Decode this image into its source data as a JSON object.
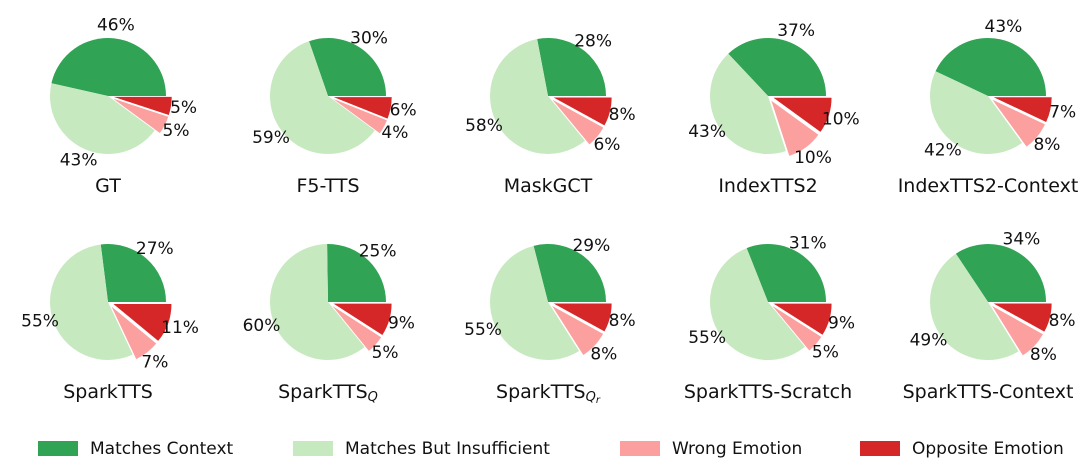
{
  "legend": {
    "labels": [
      "Matches Context",
      "Matches But Insufficient",
      "Wrong Emotion",
      "Opposite Emotion"
    ],
    "colors": [
      "#31a354",
      "#c7e9c0",
      "#fc9f9f",
      "#d62728"
    ],
    "exploded": [
      false,
      false,
      true,
      true
    ]
  },
  "chart_data": [
    {
      "type": "pie",
      "title": "GT",
      "values": [
        46,
        43,
        5,
        5
      ],
      "value_labels": [
        "46%",
        "43%",
        "5%",
        "5%"
      ]
    },
    {
      "type": "pie",
      "title": "F5-TTS",
      "values": [
        30,
        59,
        4,
        6
      ],
      "value_labels": [
        "30%",
        "59%",
        "4%",
        "6%"
      ]
    },
    {
      "type": "pie",
      "title": "MaskGCT",
      "values": [
        28,
        58,
        6,
        8
      ],
      "value_labels": [
        "28%",
        "58%",
        "6%",
        "8%"
      ]
    },
    {
      "type": "pie",
      "title": "IndexTTS2",
      "values": [
        37,
        43,
        10,
        10
      ],
      "value_labels": [
        "37%",
        "43%",
        "10%",
        "10%"
      ]
    },
    {
      "type": "pie",
      "title": "IndexTTS2-Context",
      "values": [
        43,
        42,
        8,
        7
      ],
      "value_labels": [
        "43%",
        "42%",
        "8%",
        "7%"
      ]
    },
    {
      "type": "pie",
      "title": "SparkTTS",
      "values": [
        27,
        55,
        7,
        11
      ],
      "value_labels": [
        "27%",
        "55%",
        "7%",
        "11%"
      ]
    },
    {
      "type": "pie",
      "title": "SparkTTS",
      "title_sub": "Q",
      "values": [
        25,
        60,
        5,
        9
      ],
      "value_labels": [
        "25%",
        "60%",
        "5%",
        "9%"
      ]
    },
    {
      "type": "pie",
      "title": "SparkTTS",
      "title_sub": "Q",
      "title_subsub": "r",
      "values": [
        29,
        55,
        8,
        8
      ],
      "value_labels": [
        "29%",
        "55%",
        "8%",
        "8%"
      ]
    },
    {
      "type": "pie",
      "title": "SparkTTS-Scratch",
      "values": [
        31,
        55,
        5,
        9
      ],
      "value_labels": [
        "31%",
        "55%",
        "5%",
        "9%"
      ]
    },
    {
      "type": "pie",
      "title": "SparkTTS-Context",
      "values": [
        34,
        49,
        8,
        8
      ],
      "value_labels": [
        "34%",
        "49%",
        "8%",
        "8%"
      ]
    }
  ]
}
